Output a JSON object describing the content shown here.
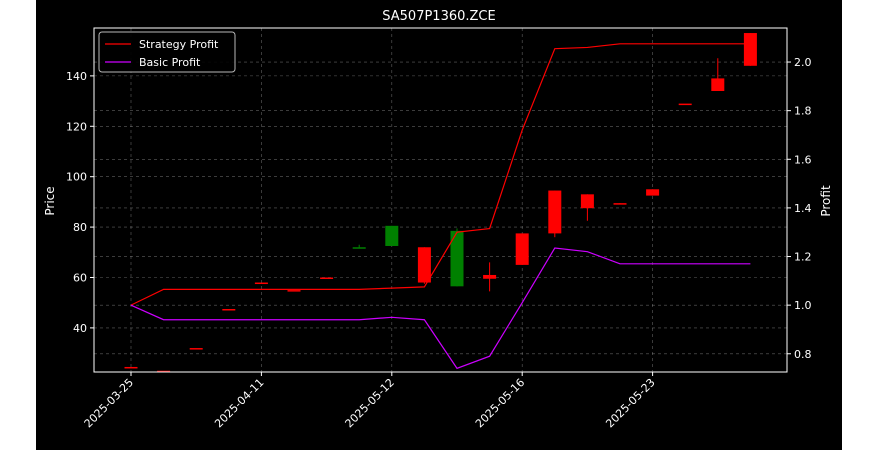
{
  "chart_data": {
    "type": "candlestick",
    "title": "SA507P1360.ZCE",
    "xlabel": "",
    "ylabel_left": "Price",
    "ylabel_right": "Profit",
    "ylim_left": [
      22.5,
      159
    ],
    "ylim_right": [
      0.725,
      2.14
    ],
    "yticks_left": [
      40,
      60,
      80,
      100,
      120,
      140
    ],
    "yticks_right": [
      0.8,
      1.0,
      1.2,
      1.4,
      1.6,
      1.8,
      2.0
    ],
    "xtick_labels": [
      {
        "label": "2025-03-25",
        "index": 0
      },
      {
        "label": "2025-04-11",
        "index": 4
      },
      {
        "label": "2025-05-12",
        "index": 8
      },
      {
        "label": "2025-05-16",
        "index": 12
      },
      {
        "label": "2025-05-23",
        "index": 16
      }
    ],
    "background_color": "#000000",
    "figure_color": "#ffffff",
    "grid": true,
    "legend_position": "top-left",
    "candles": [
      {
        "open": 24.5,
        "close": 24.5,
        "high": 24.5,
        "low": 24.5,
        "color": "#ff0000"
      },
      {
        "open": 23.0,
        "close": 23.0,
        "high": 23.0,
        "low": 23.0,
        "color": "#ff0000"
      },
      {
        "open": 32.0,
        "close": 32.0,
        "high": 32.0,
        "low": 32.0,
        "color": "#ff0000"
      },
      {
        "open": 47.5,
        "close": 47.5,
        "high": 47.5,
        "low": 47.5,
        "color": "#ff0000"
      },
      {
        "open": 58.0,
        "close": 58.0,
        "high": 58.0,
        "low": 58.0,
        "color": "#ff0000"
      },
      {
        "open": 55.0,
        "close": 55.0,
        "high": 55.0,
        "low": 55.0,
        "color": "#ff0000"
      },
      {
        "open": 60.0,
        "close": 60.0,
        "high": 60.0,
        "low": 60.0,
        "color": "#ff0000"
      },
      {
        "open": 71.5,
        "close": 72.0,
        "high": 73.0,
        "low": 71.5,
        "color": "#008000"
      },
      {
        "open": 72.5,
        "close": 80.5,
        "high": 80.5,
        "low": 72.5,
        "color": "#008000"
      },
      {
        "open": 72.0,
        "close": 58.0,
        "high": 72.0,
        "low": 57.5,
        "color": "#ff0000"
      },
      {
        "open": 56.5,
        "close": 78.5,
        "high": 79.5,
        "low": 56.5,
        "color": "#008000"
      },
      {
        "open": 61.0,
        "close": 59.5,
        "high": 66.0,
        "low": 54.5,
        "color": "#ff0000"
      },
      {
        "open": 77.5,
        "close": 65.0,
        "high": 77.5,
        "low": 65.0,
        "color": "#ff0000"
      },
      {
        "open": 94.5,
        "close": 77.5,
        "high": 94.5,
        "low": 76.0,
        "color": "#ff0000"
      },
      {
        "open": 93.0,
        "close": 87.5,
        "high": 93.0,
        "low": 82.5,
        "color": "#ff0000"
      },
      {
        "open": 89.5,
        "close": 89.0,
        "high": 89.5,
        "low": 89.0,
        "color": "#ff0000"
      },
      {
        "open": 95.0,
        "close": 92.5,
        "high": 95.0,
        "low": 92.5,
        "color": "#ff0000"
      },
      {
        "open": 129.0,
        "close": 129.0,
        "high": 129.0,
        "low": 129.0,
        "color": "#ff0000"
      },
      {
        "open": 139.0,
        "close": 134.0,
        "high": 147.0,
        "low": 134.0,
        "color": "#ff0000"
      },
      {
        "open": 157.0,
        "close": 144.0,
        "high": 157.0,
        "low": 144.0,
        "color": "#ff0000"
      }
    ],
    "series": [
      {
        "name": "Strategy Profit",
        "color": "#ff0000",
        "x_index": [
          0,
          1,
          2,
          3,
          4,
          5,
          6,
          7,
          8,
          9,
          10,
          11,
          12,
          13,
          14,
          15,
          16,
          17,
          18,
          19
        ],
        "values": [
          1.0,
          1.065,
          1.065,
          1.065,
          1.065,
          1.065,
          1.065,
          1.065,
          1.07,
          1.075,
          1.3,
          1.315,
          1.72,
          2.055,
          2.06,
          2.075,
          2.075,
          2.075,
          2.075,
          2.075
        ]
      },
      {
        "name": "Basic Profit",
        "color": "#cc00ff",
        "x_index": [
          0,
          1,
          2,
          3,
          4,
          5,
          6,
          7,
          8,
          9,
          10,
          11,
          12,
          13,
          14,
          15,
          16,
          17,
          18,
          19
        ],
        "values": [
          1.0,
          0.94,
          0.94,
          0.94,
          0.94,
          0.94,
          0.94,
          0.94,
          0.95,
          0.94,
          0.74,
          0.79,
          1.01,
          1.235,
          1.22,
          1.17,
          1.17,
          1.17,
          1.17,
          1.17
        ]
      }
    ]
  }
}
